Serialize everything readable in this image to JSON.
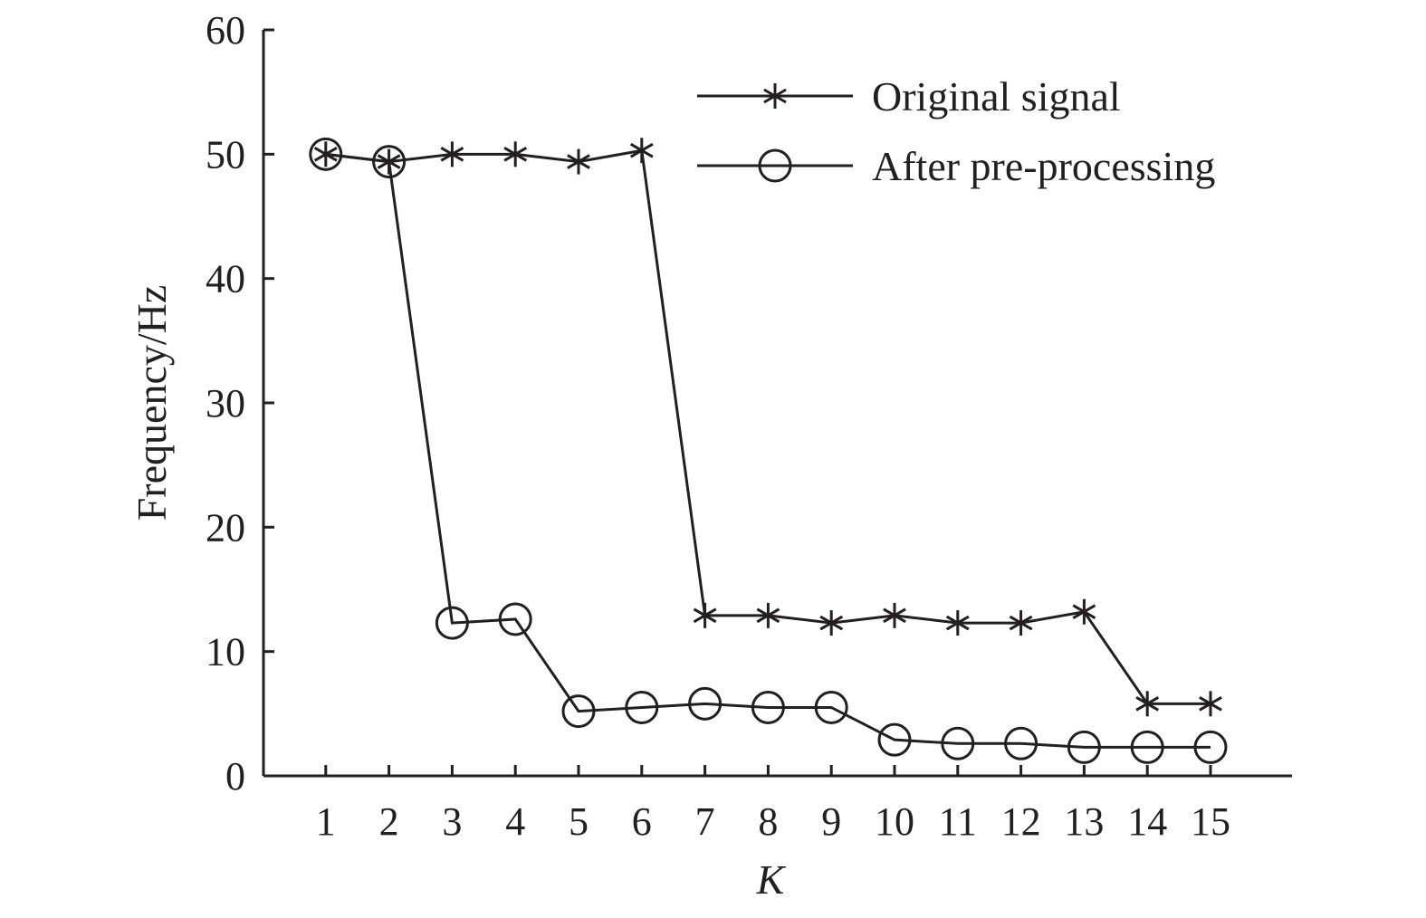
{
  "chart_data": {
    "type": "line",
    "title": "",
    "xlabel": "K",
    "ylabel": "Frequency/Hz",
    "x": [
      1,
      2,
      3,
      4,
      5,
      6,
      7,
      8,
      9,
      10,
      11,
      12,
      13,
      14,
      15
    ],
    "xlim": [
      0,
      16
    ],
    "ylim": [
      0,
      60
    ],
    "yticks": [
      0,
      10,
      20,
      30,
      40,
      50,
      60
    ],
    "xticks": [
      1,
      2,
      3,
      4,
      5,
      6,
      7,
      8,
      9,
      10,
      11,
      12,
      13,
      14,
      15
    ],
    "grid": false,
    "legend_position": "top-right",
    "series": [
      {
        "name": "Original signal",
        "marker": "star",
        "color": "#231f20",
        "values": [
          50.0,
          49.4,
          50.0,
          50.0,
          49.4,
          50.3,
          12.9,
          12.9,
          12.3,
          12.9,
          12.3,
          12.3,
          13.2,
          5.8,
          5.8
        ]
      },
      {
        "name": "After pre-processing",
        "marker": "circle",
        "color": "#231f20",
        "values": [
          50.0,
          49.4,
          12.3,
          12.6,
          5.2,
          5.5,
          5.8,
          5.5,
          5.5,
          2.9,
          2.6,
          2.6,
          2.3,
          2.3,
          2.3
        ]
      }
    ]
  }
}
